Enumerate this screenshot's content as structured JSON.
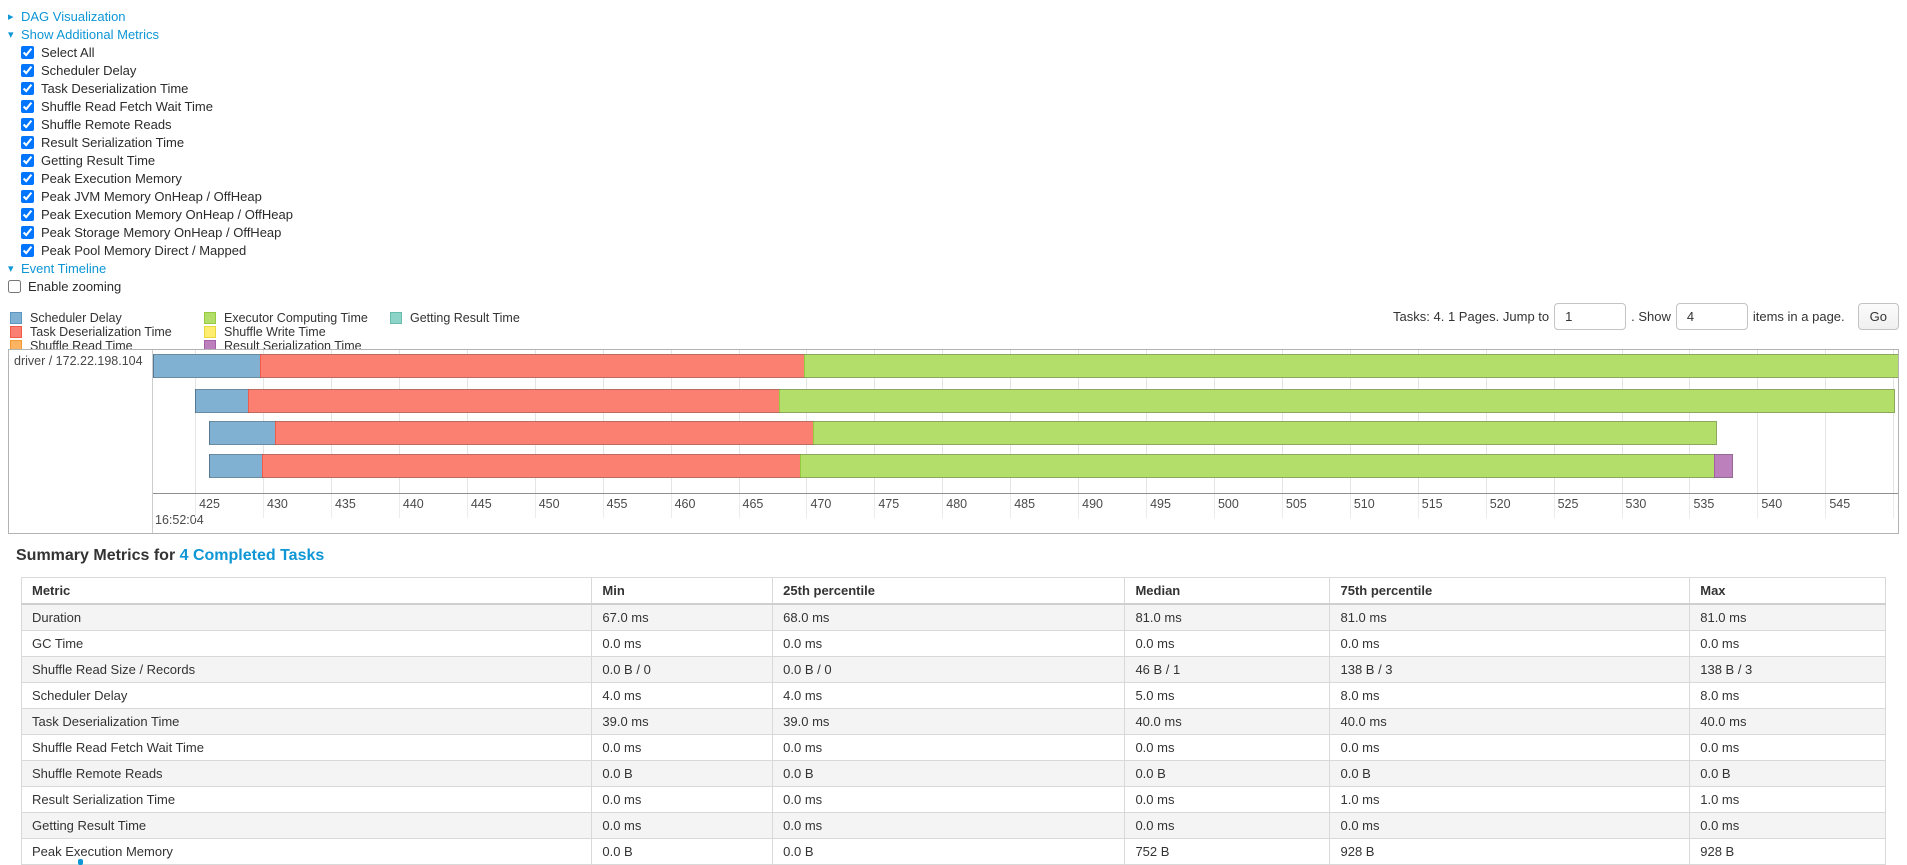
{
  "sections": {
    "dag": {
      "arrow": "▸",
      "label": "DAG Visualization"
    },
    "additional_metrics": {
      "arrow": "▾",
      "label": "Show Additional Metrics",
      "items": [
        "Select All",
        "Scheduler Delay",
        "Task Deserialization Time",
        "Shuffle Read Fetch Wait Time",
        "Shuffle Remote Reads",
        "Result Serialization Time",
        "Getting Result Time",
        "Peak Execution Memory",
        "Peak JVM Memory OnHeap / OffHeap",
        "Peak Execution Memory OnHeap / OffHeap",
        "Peak Storage Memory OnHeap / OffHeap",
        "Peak Pool Memory Direct / Mapped"
      ],
      "items_checked": true
    },
    "event_timeline": {
      "arrow": "▾",
      "label": "Event Timeline"
    },
    "enable_zooming": {
      "label": "Enable zooming",
      "checked": false
    }
  },
  "palette": {
    "scheduler_delay": {
      "label": "Scheduler Delay",
      "fill": "#80B1D3",
      "border": "#5f96c0"
    },
    "task_deserialization": {
      "label": "Task Deserialization Time",
      "fill": "#FB8072",
      "border": "#f25a4a"
    },
    "shuffle_read": {
      "label": "Shuffle Read Time",
      "fill": "#FDB462",
      "border": "#f09a36"
    },
    "executor_computing": {
      "label": "Executor Computing Time",
      "fill": "#B3DE69",
      "border": "#97cb3f"
    },
    "shuffle_write": {
      "label": "Shuffle Write Time",
      "fill": "#FFED6F",
      "border": "#e8d83f"
    },
    "result_serialization": {
      "label": "Result Serialization Time",
      "fill": "#BC80BD",
      "border": "#a55fa7"
    },
    "getting_result": {
      "label": "Getting Result Time",
      "fill": "#8DD3C7",
      "border": "#66bdae"
    }
  },
  "legend_columns": [
    [
      "scheduler_delay",
      "task_deserialization",
      "shuffle_read"
    ],
    [
      "executor_computing",
      "shuffle_write",
      "result_serialization"
    ],
    [
      "getting_result"
    ]
  ],
  "pager": {
    "prefix": "Tasks: 4. 1 Pages. Jump to",
    "jump_value": "1",
    "mid": ". Show",
    "show_value": "4",
    "suffix": "items in a page.",
    "go_label": "Go"
  },
  "chart_data": {
    "type": "timeline",
    "group_label": "driver / 172.22.198.104",
    "axis": {
      "unit": "ms",
      "tick_start": 425,
      "tick_end": 550,
      "tick_step": 5,
      "major_label": "16:52:04",
      "domain_ms": [
        421.9,
        550.35
      ]
    },
    "bars": [
      {
        "start": 421.9,
        "segments": [
          {
            "metric": "scheduler_delay",
            "until": 429.8
          },
          {
            "metric": "task_deserialization",
            "until": 469.8
          },
          {
            "metric": "executor_computing",
            "until": 551.5
          }
        ]
      },
      {
        "start": 425.0,
        "segments": [
          {
            "metric": "scheduler_delay",
            "until": 428.9
          },
          {
            "metric": "task_deserialization",
            "until": 468.0
          },
          {
            "metric": "executor_computing",
            "until": 550.1
          }
        ]
      },
      {
        "start": 426.0,
        "segments": [
          {
            "metric": "scheduler_delay",
            "until": 430.9
          },
          {
            "metric": "task_deserialization",
            "until": 470.5
          },
          {
            "metric": "executor_computing",
            "until": 537.0
          }
        ]
      },
      {
        "start": 426.0,
        "segments": [
          {
            "metric": "scheduler_delay",
            "until": 429.9
          },
          {
            "metric": "task_deserialization",
            "until": 469.5
          },
          {
            "metric": "executor_computing",
            "until": 536.8
          },
          {
            "metric": "result_serialization",
            "until": 538.2
          }
        ]
      }
    ]
  },
  "summary": {
    "title_prefix": "Summary Metrics for",
    "title_link": "4 Completed Tasks",
    "columns": [
      "Metric",
      "Min",
      "25th percentile",
      "Median",
      "75th percentile",
      "Max"
    ],
    "col_widths_pct": [
      30.6,
      9.7,
      18.9,
      11.0,
      19.3,
      10.5
    ],
    "rows": [
      [
        "Duration",
        "67.0 ms",
        "68.0 ms",
        "81.0 ms",
        "81.0 ms",
        "81.0 ms"
      ],
      [
        "GC Time",
        "0.0 ms",
        "0.0 ms",
        "0.0 ms",
        "0.0 ms",
        "0.0 ms"
      ],
      [
        "Shuffle Read Size / Records",
        "0.0 B / 0",
        "0.0 B / 0",
        "46 B / 1",
        "138 B / 3",
        "138 B / 3"
      ],
      [
        "Scheduler Delay",
        "4.0 ms",
        "4.0 ms",
        "5.0 ms",
        "8.0 ms",
        "8.0 ms"
      ],
      [
        "Task Deserialization Time",
        "39.0 ms",
        "39.0 ms",
        "40.0 ms",
        "40.0 ms",
        "40.0 ms"
      ],
      [
        "Shuffle Read Fetch Wait Time",
        "0.0 ms",
        "0.0 ms",
        "0.0 ms",
        "0.0 ms",
        "0.0 ms"
      ],
      [
        "Shuffle Remote Reads",
        "0.0 B",
        "0.0 B",
        "0.0 B",
        "0.0 B",
        "0.0 B"
      ],
      [
        "Result Serialization Time",
        "0.0 ms",
        "0.0 ms",
        "0.0 ms",
        "1.0 ms",
        "1.0 ms"
      ],
      [
        "Getting Result Time",
        "0.0 ms",
        "0.0 ms",
        "0.0 ms",
        "0.0 ms",
        "0.0 ms"
      ],
      [
        "Peak Execution Memory",
        "0.0 B",
        "0.0 B",
        "752 B",
        "928 B",
        "928 B"
      ]
    ]
  },
  "cutoff_fragment": {
    "color": "#0e96d5"
  }
}
